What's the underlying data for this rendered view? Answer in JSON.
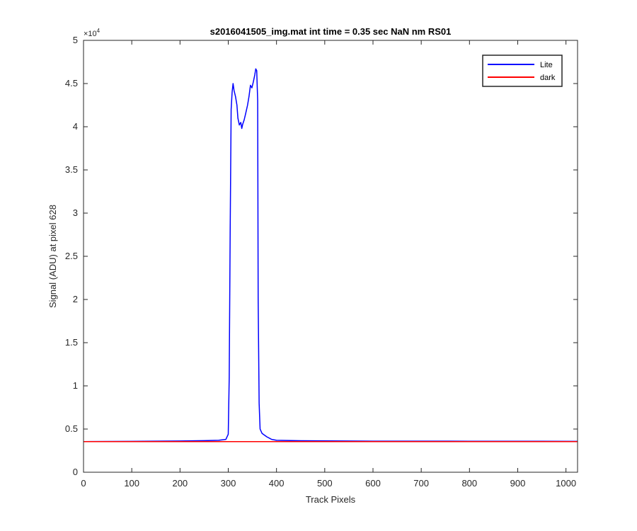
{
  "chart_data": {
    "type": "line",
    "title": "s2016041505_img.mat int time = 0.35 sec  NaN nm RS01",
    "xlabel": "Track Pixels",
    "ylabel": "Signal (ADU) at pixel 628",
    "xlim": [
      0,
      1024
    ],
    "ylim": [
      0,
      50000
    ],
    "x_ticks": [
      "0",
      "100",
      "200",
      "300",
      "400",
      "500",
      "600",
      "700",
      "800",
      "900",
      "1000"
    ],
    "y_ticks": [
      "0",
      "0.5",
      "1",
      "1.5",
      "2",
      "2.5",
      "3",
      "3.5",
      "4",
      "4.5",
      "5"
    ],
    "y_exponent": "×10",
    "y_exponent_power": "4",
    "legend_position": "top-right",
    "grid": false,
    "series": [
      {
        "name": "Lite",
        "color": "#0000ff",
        "x": [
          0,
          100,
          200,
          250,
          280,
          295,
          300,
          302,
          304,
          306,
          308,
          310,
          312,
          315,
          318,
          320,
          323,
          326,
          328,
          330,
          333,
          336,
          340,
          343,
          346,
          349,
          352,
          355,
          357,
          359,
          361,
          362,
          364,
          366,
          370,
          380,
          390,
          400,
          450,
          600,
          800,
          1024
        ],
        "y": [
          3550,
          3580,
          3620,
          3660,
          3700,
          3800,
          4400,
          11000,
          28000,
          42000,
          44000,
          45000,
          44200,
          43500,
          42500,
          41000,
          40200,
          40500,
          39800,
          40300,
          40800,
          41500,
          42500,
          43500,
          44800,
          44500,
          45200,
          46000,
          46700,
          46500,
          43000,
          20000,
          8000,
          5000,
          4500,
          4100,
          3800,
          3700,
          3650,
          3600,
          3590,
          3580
        ]
      },
      {
        "name": "dark",
        "color": "#ff0000",
        "x": [
          0,
          1024
        ],
        "y": [
          3550,
          3550
        ]
      }
    ]
  }
}
